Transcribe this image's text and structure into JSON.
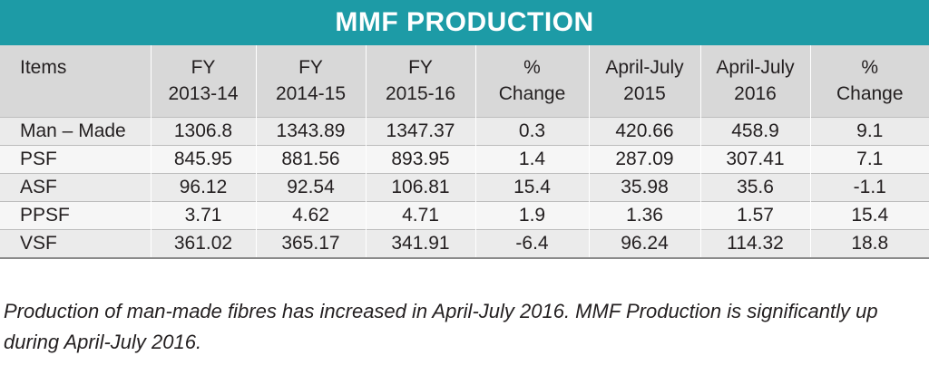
{
  "title": "MMF PRODUCTION",
  "columns": [
    [
      "Items",
      ""
    ],
    [
      "FY",
      "2013-14"
    ],
    [
      "FY",
      "2014-15"
    ],
    [
      "FY",
      "2015-16"
    ],
    [
      "%",
      "Change"
    ],
    [
      "April-July",
      "2015"
    ],
    [
      "April-July",
      "2016"
    ],
    [
      "%",
      "Change"
    ]
  ],
  "rows": [
    [
      "Man – Made",
      "1306.8",
      "1343.89",
      "1347.37",
      "0.3",
      "420.66",
      "458.9",
      "9.1"
    ],
    [
      "PSF",
      "845.95",
      "881.56",
      "893.95",
      "1.4",
      "287.09",
      "307.41",
      "7.1"
    ],
    [
      "ASF",
      "96.12",
      "92.54",
      "106.81",
      "15.4",
      "35.98",
      "35.6",
      "-1.1"
    ],
    [
      "PPSF",
      "3.71",
      "4.62",
      "4.71",
      "1.9",
      "1.36",
      "1.57",
      "15.4"
    ],
    [
      "VSF",
      "361.02",
      "365.17",
      "341.91",
      "-6.4",
      "96.24",
      "114.32",
      "18.8"
    ]
  ],
  "caption": "Production of man-made fibres has increased in April-July 2016. MMF Production is significantly up during April-July 2016.",
  "colors": {
    "title_bar": "#1d9ba6",
    "header_bg": "#d8d8d8"
  }
}
